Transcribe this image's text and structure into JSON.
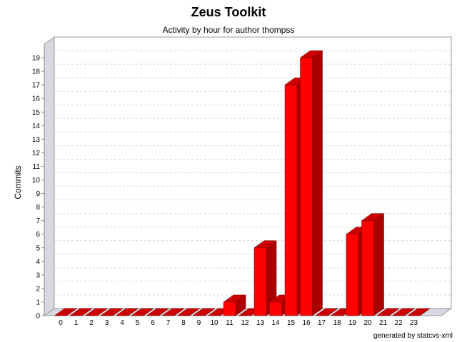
{
  "chart_data": {
    "type": "bar",
    "title": "Zeus Toolkit",
    "subtitle": "Activity by hour for author thompss",
    "xlabel": "",
    "ylabel": "Commits",
    "categories": [
      "0",
      "1",
      "2",
      "3",
      "4",
      "5",
      "6",
      "7",
      "8",
      "9",
      "10",
      "11",
      "12",
      "13",
      "14",
      "15",
      "16",
      "17",
      "18",
      "19",
      "20",
      "21",
      "22",
      "23"
    ],
    "values": [
      0,
      0,
      0,
      0,
      0,
      0,
      0,
      0,
      0,
      0,
      0,
      1,
      0,
      5,
      1,
      17,
      19,
      0,
      0,
      6,
      7,
      0,
      0,
      0
    ],
    "ylim": [
      0,
      20
    ],
    "yticks": [
      0,
      1,
      2,
      3,
      4,
      5,
      6,
      7,
      8,
      9,
      10,
      11,
      12,
      13,
      14,
      15,
      16,
      17,
      18,
      19
    ],
    "grid": true,
    "style": "3d",
    "bar_color": "#ff0000",
    "bar_top_color": "#cc0000",
    "bar_side_color": "#aa0000"
  },
  "footer": "generated by statcvs-xml"
}
